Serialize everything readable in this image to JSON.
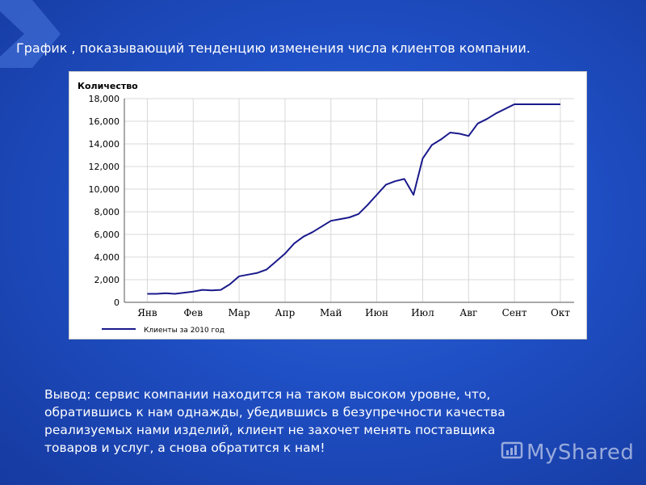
{
  "slide": {
    "title": "График , показывающий тенденцию изменения числа клиентов компании.",
    "conclusion_lines": [
      "Вывод: сервис компании находится на таком высоком уровне, что,",
      "обратившись к нам однажды, убедившись в безупречности качества",
      "реализуемых нами изделий, клиент не захочет менять поставщика",
      " товаров и услуг, а снова обратится к нам!"
    ],
    "watermark": "MyShared"
  },
  "colors": {
    "line": "#1a1a8c",
    "grid": "#d8d8d8",
    "axis_text": "#000000"
  },
  "chart_data": {
    "type": "line",
    "title": "",
    "ylabel": "Количество",
    "xlabel": "",
    "ylim": [
      0,
      18000
    ],
    "yticks": [
      0,
      2000,
      4000,
      6000,
      8000,
      10000,
      12000,
      14000,
      16000,
      18000
    ],
    "ytick_labels": [
      "0",
      "2,000",
      "4,000",
      "6,000",
      "8,000",
      "10,000",
      "12,000",
      "14,000",
      "16,000",
      "18,000"
    ],
    "x_months": [
      "Янв",
      "Фев",
      "Мар",
      "Апр",
      "Май",
      "Июн",
      "Июл",
      "Авг",
      "Сент",
      "Окт"
    ],
    "grid": true,
    "legend_position": "bottom-left",
    "series": [
      {
        "name": "Клиенты за 2010 год",
        "x": [
          0.0,
          0.2,
          0.4,
          0.6,
          0.8,
          1.0,
          1.2,
          1.4,
          1.6,
          1.8,
          2.0,
          2.2,
          2.4,
          2.6,
          2.8,
          3.0,
          3.2,
          3.4,
          3.6,
          3.8,
          4.0,
          4.2,
          4.4,
          4.6,
          4.8,
          5.0,
          5.2,
          5.4,
          5.6,
          5.8,
          6.0,
          6.2,
          6.4,
          6.6,
          6.8,
          7.0,
          7.2,
          7.4,
          7.6,
          7.8,
          8.0,
          8.2,
          8.4,
          8.6,
          8.8,
          9.0
        ],
        "values": [
          750,
          750,
          800,
          750,
          850,
          950,
          1100,
          1050,
          1100,
          1600,
          2300,
          2450,
          2600,
          2900,
          3600,
          4300,
          5200,
          5800,
          6200,
          6700,
          7200,
          7350,
          7500,
          7800,
          8600,
          9500,
          10400,
          10700,
          10900,
          9500,
          12700,
          13900,
          14400,
          15000,
          14900,
          14700,
          15800,
          16200,
          16700,
          17100,
          17500,
          17500,
          17500,
          17500,
          17500,
          17500
        ]
      }
    ]
  }
}
